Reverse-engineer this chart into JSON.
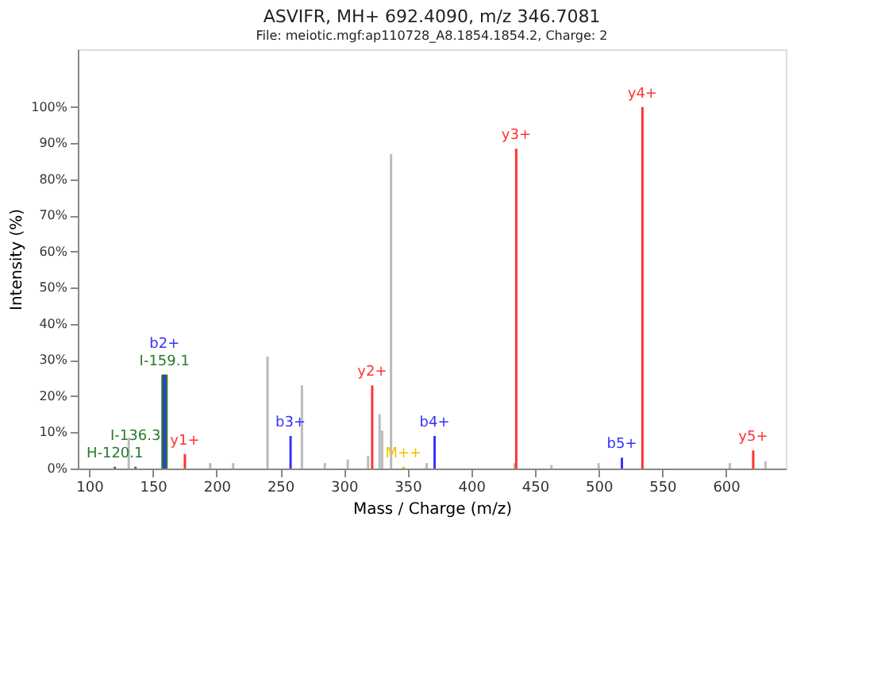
{
  "chart_data": {
    "type": "bar",
    "title": "ASVIFR, MH+ 692.4090, m/z 346.7081",
    "subtitle": "File: meiotic.mgf:ap110728_A8.1854.1854.2, Charge: 2",
    "xlabel": "Mass / Charge (m/z)",
    "ylabel": "Intensity (%)",
    "xlim": [
      91,
      647
    ],
    "xticks": [
      100,
      150,
      200,
      250,
      300,
      350,
      400,
      450,
      500,
      550,
      600
    ],
    "ylim": [
      0,
      116
    ],
    "yticks": [
      {
        "value": 0,
        "label": "0%"
      },
      {
        "value": 10,
        "label": "10%"
      },
      {
        "value": 20,
        "label": "20%"
      },
      {
        "value": 30,
        "label": "30%"
      },
      {
        "value": 40,
        "label": "40%"
      },
      {
        "value": 50,
        "label": "50%"
      },
      {
        "value": 60,
        "label": "60%"
      },
      {
        "value": 70,
        "label": "70%"
      },
      {
        "value": 80,
        "label": "80%"
      },
      {
        "value": 90,
        "label": "90%"
      },
      {
        "value": 100,
        "label": "100%"
      }
    ],
    "grid": false,
    "series": [
      {
        "color": "#bbbbbb",
        "x": [
          131,
          195,
          213,
          240,
          267,
          285,
          303,
          319,
          328,
          330,
          337,
          365,
          434,
          463,
          500,
          603,
          631
        ],
        "values": [
          8.5,
          1.5,
          1.5,
          31,
          23,
          1.5,
          2.5,
          3.5,
          15,
          10.5,
          87,
          1.5,
          1.5,
          1,
          1.5,
          1.5,
          2
        ]
      },
      {
        "color": "#ff3333",
        "x": [
          175.1,
          322.2,
          435.3,
          534.4,
          621.4
        ],
        "values": [
          4,
          23,
          88.5,
          100,
          5
        ],
        "value_labels": [
          "y1+",
          "y2+",
          "y3+",
          "y4+",
          "y5+"
        ]
      },
      {
        "color": "#2a7a2a",
        "x": [
          120.1,
          136.3,
          159.1
        ],
        "values": [
          0.5,
          0.5,
          26
        ],
        "value_labels": [
          "H-120.1",
          "I-136.3",
          "I-159.1"
        ]
      },
      {
        "color": "#3333ff",
        "x": [
          159.1,
          258.1,
          371.2,
          518.3
        ],
        "values": [
          26,
          9,
          9,
          3
        ],
        "value_labels": [
          "b2+",
          "b3+",
          "b4+",
          "b5+"
        ]
      },
      {
        "color": "#f0c000",
        "x": [
          346.7
        ],
        "values": [
          0.5
        ],
        "value_labels": [
          "M++"
        ]
      }
    ]
  }
}
